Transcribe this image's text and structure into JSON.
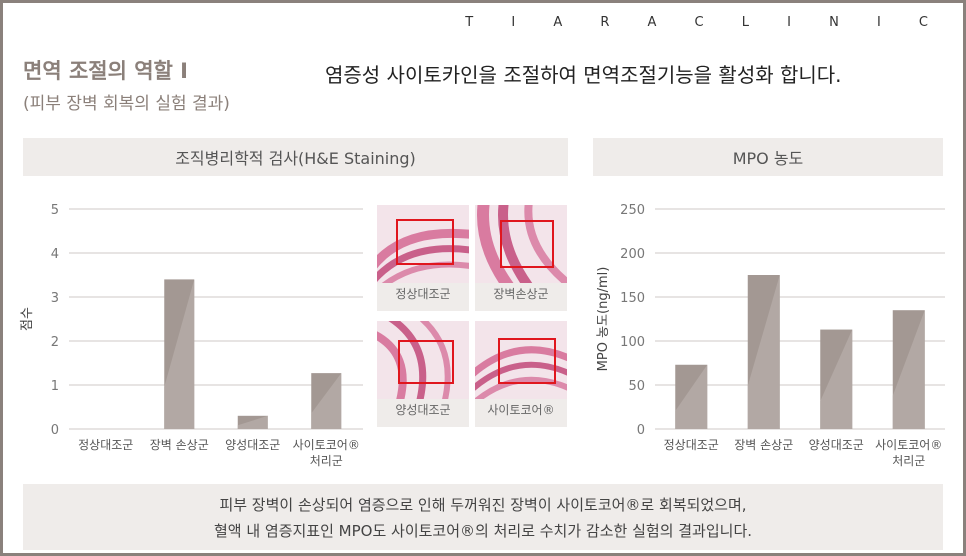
{
  "header": {
    "brand": "T I A R A   C L I N I C",
    "title": "면역 조절의 역할 I",
    "subtitle": "(피부 장벽 회복의 실험 결과)",
    "headline": "염증성 사이토카인을 조절하여 면역조절기능을 활성화 합니다."
  },
  "panels": {
    "histology_title": "조직병리학적 검사(H&E Staining)",
    "mpo_title": "MPO 농도"
  },
  "thumbnails": [
    {
      "caption": "정상대조군"
    },
    {
      "caption": "장벽손상군"
    },
    {
      "caption": "양성대조군"
    },
    {
      "caption": "사이토코어®"
    }
  ],
  "footer": {
    "line1": "피부 장벽이 손상되어 염증으로 인해 두꺼워진 장벽이 사이토코어®로 회복되었으며,",
    "line2": "혈액 내 염증지표인 MPO도 사이토코어®의 처리로 수치가 감소한 실험의 결과입니다."
  },
  "colors": {
    "bar": "#a39893",
    "bar_light": "#b7aeaa",
    "accent_title": "#8b807a",
    "panel_bg": "#efecea",
    "stain": "#d97ba0",
    "box": "#e0161e"
  },
  "chart_data": [
    {
      "type": "bar",
      "ylabel": "점수",
      "ylim": [
        0,
        5
      ],
      "yticks": [
        0,
        1,
        2,
        3,
        4,
        5
      ],
      "categories": [
        [
          "정상대조군"
        ],
        [
          "장벽 손상군"
        ],
        [
          "양성대조군"
        ],
        [
          "사이토코어®",
          "처리군"
        ]
      ],
      "values": [
        0,
        3.4,
        0.3,
        1.27
      ],
      "grid": true
    },
    {
      "type": "bar",
      "ylabel": "MPO 농도(ng/ml)",
      "ylim": [
        0,
        250
      ],
      "yticks": [
        0,
        50,
        100,
        150,
        200,
        250
      ],
      "categories": [
        [
          "정상대조군"
        ],
        [
          "장벽 손상군"
        ],
        [
          "양성대조군"
        ],
        [
          "사이토코어®",
          "처리군"
        ]
      ],
      "values": [
        73,
        175,
        113,
        135
      ],
      "grid": true
    }
  ]
}
